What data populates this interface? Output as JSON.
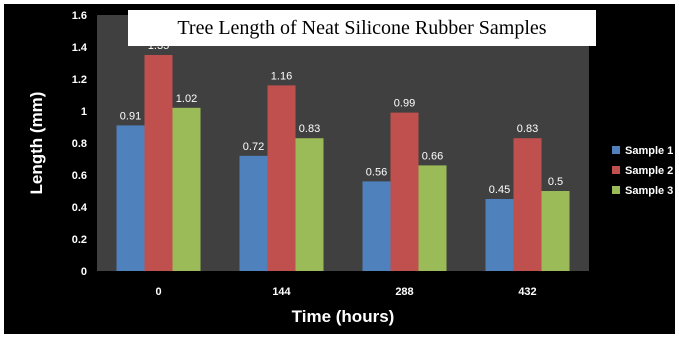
{
  "chart_data": {
    "type": "bar",
    "title": "Tree Length of Neat Silicone Rubber Samples",
    "xlabel": "Time (hours)",
    "ylabel": "Length (mm)",
    "categories": [
      "0",
      "144",
      "288",
      "432"
    ],
    "series": [
      {
        "name": "Sample 1",
        "color": "#4f81bd",
        "values": [
          0.91,
          0.72,
          0.56,
          0.45
        ],
        "labels": [
          "0.91",
          "0.72",
          "0.56",
          "0.45"
        ]
      },
      {
        "name": "Sample 2",
        "color": "#c0504d",
        "values": [
          1.35,
          1.16,
          0.99,
          0.83
        ],
        "labels": [
          "1.35",
          "1.16",
          "0.99",
          "0.83"
        ]
      },
      {
        "name": "Sample 3",
        "color": "#9bbb59",
        "values": [
          1.02,
          0.83,
          0.66,
          0.5
        ],
        "labels": [
          "1.02",
          "0.83",
          "0.66",
          "0.5"
        ]
      }
    ],
    "ylim": [
      0,
      1.6
    ],
    "yticks": [
      "0",
      "0.2",
      "0.4",
      "0.6",
      "0.8",
      "1",
      "1.2",
      "1.4",
      "1.6"
    ],
    "grid": false,
    "legend_position": "right",
    "background": "#404040",
    "frame": "#000000"
  }
}
